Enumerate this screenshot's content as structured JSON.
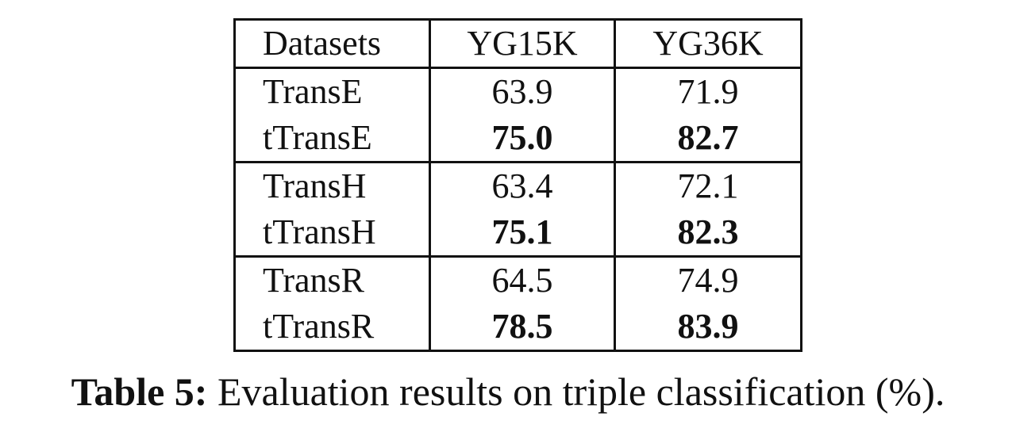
{
  "table": {
    "headers": [
      "Datasets",
      "YG15K",
      "YG36K"
    ],
    "rows": [
      {
        "method": "TransE",
        "yg15k": "63.9",
        "yg36k": "71.9",
        "bold": false
      },
      {
        "method": "tTransE",
        "yg15k": "75.0",
        "yg36k": "82.7",
        "bold": true
      },
      {
        "method": "TransH",
        "yg15k": "63.4",
        "yg36k": "72.1",
        "bold": false
      },
      {
        "method": "tTransH",
        "yg15k": "75.1",
        "yg36k": "82.3",
        "bold": true
      },
      {
        "method": "TransR",
        "yg15k": "64.5",
        "yg36k": "74.9",
        "bold": false
      },
      {
        "method": "tTransR",
        "yg15k": "78.5",
        "yg36k": "83.9",
        "bold": true
      }
    ]
  },
  "caption": {
    "label": "Table 5:",
    "text": "Evaluation results on triple classification (%)."
  }
}
